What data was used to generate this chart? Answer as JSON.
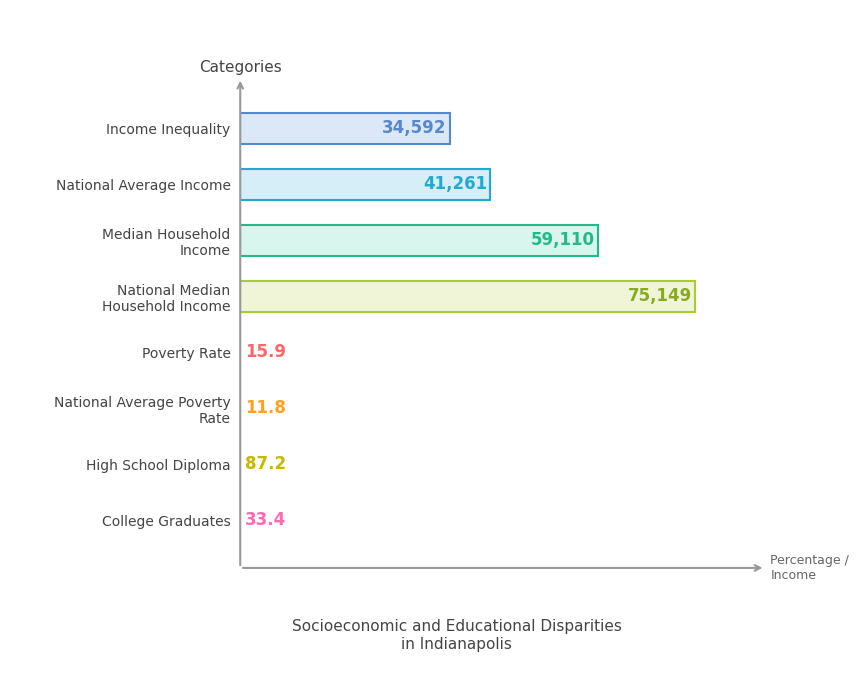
{
  "categories": [
    "College Graduates",
    "High School Diploma",
    "National Average Poverty\nRate",
    "Poverty Rate",
    "National Median\nHousehold Income",
    "Median Household\nIncome",
    "National Average Income",
    "Income Inequality"
  ],
  "values": [
    33.4,
    87.2,
    11.8,
    15.9,
    75149,
    59110,
    41261,
    34592
  ],
  "bar_face_colors": [
    "none",
    "none",
    "none",
    "none",
    "#F0F5D8",
    "#D8F5EE",
    "#D5EEF8",
    "#DCE8F8"
  ],
  "bar_edge_colors": [
    "none",
    "none",
    "none",
    "none",
    "#AACC33",
    "#22BB88",
    "#22AACC",
    "#5588CC"
  ],
  "value_colors": [
    "#FF69B4",
    "#C8B800",
    "#FFA020",
    "#FF6666",
    "#88AA22",
    "#22BB88",
    "#22AACC",
    "#5588CC"
  ],
  "value_labels": [
    "33.4",
    "87.2",
    "11.8",
    "15.9",
    "75,149",
    "59,110",
    "41,261",
    "34,592"
  ],
  "xlabel": "Socioeconomic and Educational Disparities\nin Indianapolis",
  "ylabel": "Categories",
  "x_arrow_label": "Percentage /\nIncome",
  "xlim_max": 85000,
  "figsize": [
    8.58,
    6.96
  ],
  "dpi": 100
}
